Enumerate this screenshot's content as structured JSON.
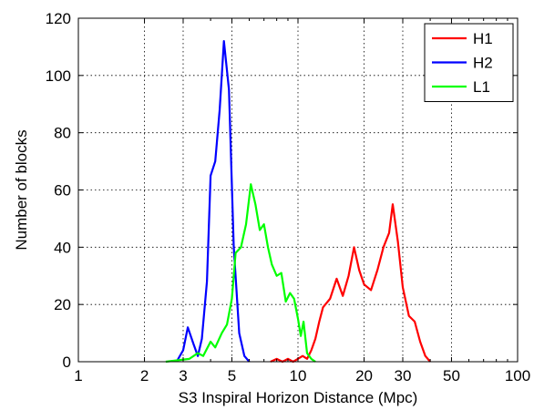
{
  "chart_data": {
    "type": "line",
    "xlabel": "S3 Inspiral Horizon Distance (Mpc)",
    "ylabel": "Number of blocks",
    "xscale": "log",
    "xlim": [
      1,
      100
    ],
    "ylim": [
      0,
      120
    ],
    "x_ticks": [
      1,
      2,
      3,
      5,
      10,
      20,
      30,
      50,
      100
    ],
    "x_tick_labels": [
      "1",
      "2",
      "3",
      "5",
      "10",
      "20",
      "30",
      "50",
      "100"
    ],
    "y_ticks": [
      0,
      20,
      40,
      60,
      80,
      100,
      120
    ],
    "y_tick_labels": [
      "0",
      "20",
      "40",
      "60",
      "80",
      "100",
      "120"
    ],
    "grid": true,
    "legend_position": "top-right",
    "series": [
      {
        "name": "H1",
        "color": "#ff0000",
        "points": [
          [
            7.5,
            0
          ],
          [
            8.0,
            1
          ],
          [
            8.5,
            0
          ],
          [
            9.0,
            1
          ],
          [
            9.5,
            0
          ],
          [
            10.0,
            1
          ],
          [
            10.5,
            2
          ],
          [
            11.0,
            1
          ],
          [
            11.5,
            4
          ],
          [
            12.0,
            8
          ],
          [
            12.5,
            14
          ],
          [
            13.0,
            19
          ],
          [
            14.0,
            22
          ],
          [
            15.0,
            29
          ],
          [
            16.0,
            23
          ],
          [
            17.0,
            30
          ],
          [
            18.0,
            40
          ],
          [
            19.0,
            32
          ],
          [
            20.0,
            27
          ],
          [
            21.5,
            25
          ],
          [
            23.0,
            32
          ],
          [
            24.5,
            40
          ],
          [
            26.0,
            45
          ],
          [
            27.0,
            55
          ],
          [
            28.5,
            42
          ],
          [
            30.0,
            26
          ],
          [
            32.0,
            16
          ],
          [
            34.0,
            14
          ],
          [
            36.0,
            7
          ],
          [
            38.0,
            2
          ],
          [
            40.0,
            0
          ]
        ]
      },
      {
        "name": "H2",
        "color": "#0000ff",
        "points": [
          [
            2.8,
            0
          ],
          [
            3.0,
            4
          ],
          [
            3.15,
            12
          ],
          [
            3.35,
            6
          ],
          [
            3.5,
            2
          ],
          [
            3.65,
            8
          ],
          [
            3.85,
            28
          ],
          [
            4.0,
            65
          ],
          [
            4.2,
            70
          ],
          [
            4.4,
            88
          ],
          [
            4.6,
            112
          ],
          [
            4.85,
            95
          ],
          [
            5.1,
            40
          ],
          [
            5.4,
            10
          ],
          [
            5.7,
            2
          ],
          [
            6.0,
            0
          ]
        ]
      },
      {
        "name": "L1",
        "color": "#00ff00",
        "points": [
          [
            2.5,
            0
          ],
          [
            3.2,
            1
          ],
          [
            3.5,
            3
          ],
          [
            3.7,
            2
          ],
          [
            4.0,
            7
          ],
          [
            4.2,
            5
          ],
          [
            4.5,
            10
          ],
          [
            4.75,
            13
          ],
          [
            5.0,
            22
          ],
          [
            5.2,
            38
          ],
          [
            5.5,
            40
          ],
          [
            5.8,
            48
          ],
          [
            6.1,
            62
          ],
          [
            6.4,
            55
          ],
          [
            6.7,
            46
          ],
          [
            7.0,
            48
          ],
          [
            7.3,
            40
          ],
          [
            7.6,
            34
          ],
          [
            8.0,
            30
          ],
          [
            8.4,
            31
          ],
          [
            8.8,
            21
          ],
          [
            9.2,
            24
          ],
          [
            9.6,
            22
          ],
          [
            10.0,
            15
          ],
          [
            10.3,
            9
          ],
          [
            10.6,
            14
          ],
          [
            11.0,
            3
          ],
          [
            11.5,
            1
          ],
          [
            12.0,
            0
          ]
        ]
      }
    ]
  }
}
